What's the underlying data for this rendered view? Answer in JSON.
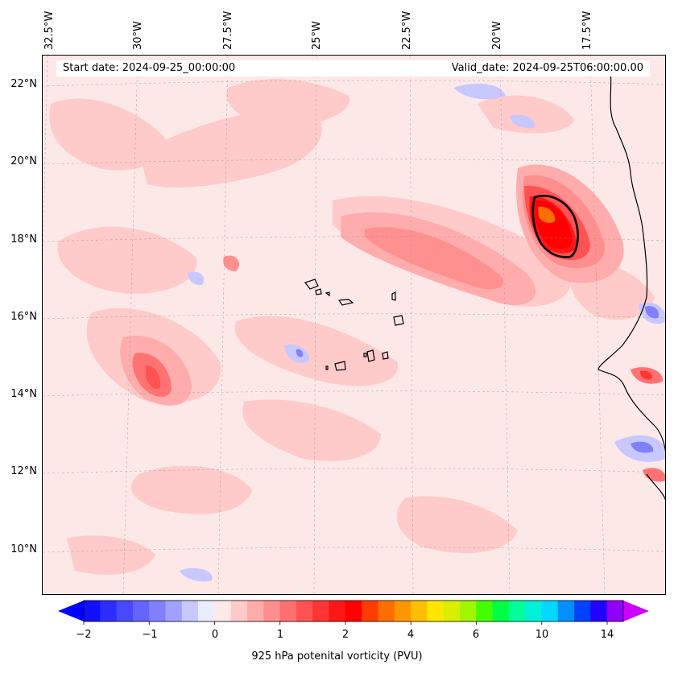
{
  "map": {
    "start_date": "Start date: 2024-09-25_00:00:00",
    "valid_date": "Valid_date: 2024-09-25T06:00:00.00",
    "projection": "curved graticule (conic-like)",
    "gridlines": true,
    "longitude_labels": [
      "32.5°W",
      "30°W",
      "27.5°W",
      "25°W",
      "22.5°W",
      "20°W",
      "17.5°W"
    ],
    "latitude_labels": [
      "22°N",
      "20°N",
      "18°N",
      "16°N",
      "14°N",
      "12°N",
      "10°N"
    ],
    "features": [
      "cabo-verde-islands",
      "west-african-coastline",
      "pv-maximum-contour-18N-19W"
    ]
  },
  "colorbar": {
    "label": "925 hPa potenital vorticity (PVU)",
    "tick_labels": [
      "−2",
      "−1",
      "0",
      "1",
      "2",
      "4",
      "6",
      "10",
      "14"
    ],
    "extend": "both",
    "colors": [
      "#1010ff",
      "#2c2cff",
      "#4848ff",
      "#6464ff",
      "#8080ff",
      "#a0a0ff",
      "#c8c8ff",
      "#ececff",
      "#ffe8e8",
      "#ffcaca",
      "#ffacac",
      "#ff8e8e",
      "#ff7070",
      "#ff5252",
      "#ff3434",
      "#ff1616",
      "#ff0000",
      "#ff3c00",
      "#ff6e00",
      "#ff9600",
      "#ffbe00",
      "#ffe600",
      "#d8f000",
      "#a0f800",
      "#44ff00",
      "#00ff44",
      "#00ff9c",
      "#00f0d8",
      "#00d8ff",
      "#0090ff",
      "#0040ff",
      "#2000ff",
      "#9000ff"
    ],
    "under_color": "#0000ff",
    "over_color": "#cc00ff"
  }
}
